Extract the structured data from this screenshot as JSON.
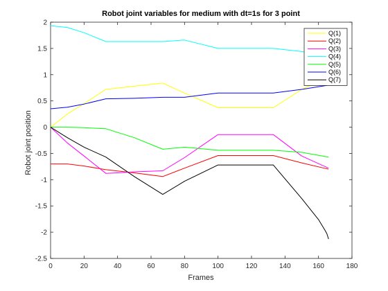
{
  "chart_data": {
    "type": "line",
    "title": "Robot joint variables for medium with dt=1s for 3 point",
    "xlabel": "Frames",
    "ylabel": "Robot joint position",
    "xlim": [
      0,
      180
    ],
    "ylim": [
      -2.5,
      2
    ],
    "xticks": [
      "0",
      "20",
      "40",
      "60",
      "80",
      "100",
      "120",
      "140",
      "160",
      "180"
    ],
    "yticks": [
      "-2.5",
      "-2",
      "-1.5",
      "-1",
      "-0.5",
      "0",
      "0.5",
      "1",
      "1.5",
      "2"
    ],
    "grid": false,
    "legend_position": "top-right",
    "series": [
      {
        "name": "Q(1)",
        "color": "#ffff00",
        "x": [
          0,
          10,
          20,
          33,
          50,
          67,
          80,
          100,
          115,
          133,
          150,
          166
        ],
        "y": [
          0,
          0.25,
          0.45,
          0.72,
          0.78,
          0.84,
          0.65,
          0.37,
          0.37,
          0.37,
          0.72,
          0.95
        ]
      },
      {
        "name": "Q(2)",
        "color": "#ff0000",
        "x": [
          0,
          10,
          20,
          33,
          50,
          67,
          80,
          100,
          115,
          133,
          150,
          166
        ],
        "y": [
          -0.7,
          -0.7,
          -0.74,
          -0.81,
          -0.87,
          -0.94,
          -0.78,
          -0.54,
          -0.54,
          -0.54,
          -0.68,
          -0.8
        ]
      },
      {
        "name": "Q(3)",
        "color": "#ff00ff",
        "x": [
          0,
          10,
          20,
          33,
          40,
          50,
          67,
          80,
          100,
          115,
          133,
          150,
          166
        ],
        "y": [
          0,
          -0.3,
          -0.55,
          -0.88,
          -0.87,
          -0.85,
          -0.83,
          -0.58,
          -0.14,
          -0.14,
          -0.14,
          -0.55,
          -0.78
        ]
      },
      {
        "name": "Q(4)",
        "color": "#00ffff",
        "x": [
          0,
          10,
          20,
          33,
          50,
          67,
          80,
          100,
          115,
          133,
          150,
          166
        ],
        "y": [
          1.93,
          1.9,
          1.8,
          1.63,
          1.63,
          1.63,
          1.66,
          1.5,
          1.5,
          1.5,
          1.44,
          1.35
        ]
      },
      {
        "name": "Q(5)",
        "color": "#00ff00",
        "x": [
          0,
          10,
          20,
          33,
          50,
          67,
          80,
          100,
          115,
          133,
          150,
          166
        ],
        "y": [
          0,
          0,
          -0.01,
          -0.03,
          -0.2,
          -0.42,
          -0.38,
          -0.44,
          -0.44,
          -0.44,
          -0.48,
          -0.57
        ]
      },
      {
        "name": "Q(6)",
        "color": "#0000ff",
        "x": [
          0,
          10,
          20,
          33,
          50,
          67,
          80,
          100,
          115,
          133,
          150,
          166
        ],
        "y": [
          0.35,
          0.38,
          0.44,
          0.54,
          0.55,
          0.57,
          0.57,
          0.65,
          0.65,
          0.65,
          0.72,
          0.8
        ]
      },
      {
        "name": "Q(7)",
        "color": "#000000",
        "x": [
          0,
          10,
          20,
          33,
          50,
          67,
          80,
          100,
          115,
          133,
          150,
          160,
          164,
          165,
          166
        ],
        "y": [
          0,
          -0.2,
          -0.38,
          -0.57,
          -0.94,
          -1.28,
          -1.03,
          -0.72,
          -0.72,
          -0.72,
          -1.36,
          -1.76,
          -1.97,
          -2.03,
          -2.13
        ]
      }
    ]
  }
}
